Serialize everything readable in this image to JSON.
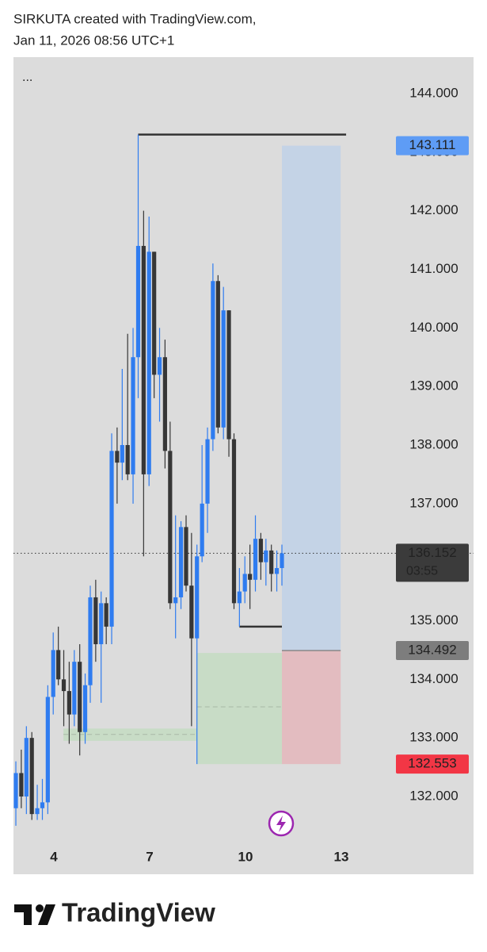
{
  "header": {
    "line1": "SIRKUTA created with TradingView.com,",
    "line2": "Jan 11, 2026 08:56 UTC+1"
  },
  "footer_logo": "TradingView",
  "chart_data": {
    "type": "candlestick",
    "menu": "...",
    "up_color": "#2f7cf0",
    "down_color": "#363636",
    "x": [
      2.81,
      2.98,
      3.14,
      3.31,
      3.48,
      3.64,
      3.81,
      3.98,
      4.14,
      4.31,
      4.48,
      4.64,
      4.81,
      4.98,
      5.14,
      5.31,
      5.48,
      5.64,
      5.81,
      5.98,
      6.14,
      6.31,
      6.48,
      6.64,
      6.81,
      6.98,
      7.14,
      7.31,
      7.48,
      7.64,
      7.81,
      7.98,
      8.14,
      8.31,
      8.48,
      8.64,
      8.81,
      8.98,
      9.14,
      9.31,
      9.48,
      9.64,
      9.81,
      9.98,
      10.14,
      10.31,
      10.48,
      10.64,
      10.81,
      10.98,
      11.14
    ],
    "open": [
      131.8,
      132.4,
      132.0,
      133.0,
      131.7,
      131.8,
      131.9,
      133.7,
      134.5,
      134.0,
      133.8,
      133.4,
      134.3,
      133.1,
      133.9,
      135.4,
      134.6,
      135.3,
      134.9,
      137.9,
      137.7,
      138.0,
      137.5,
      139.5,
      141.4,
      137.5,
      141.3,
      139.2,
      139.5,
      137.9,
      135.3,
      135.4,
      136.6,
      135.6,
      134.7,
      136.1,
      137.0,
      138.1,
      140.8,
      138.3,
      140.3,
      138.1,
      135.3,
      135.5,
      135.8,
      135.7,
      136.4,
      136.0,
      136.2,
      135.8,
      135.9
    ],
    "high": [
      132.6,
      132.8,
      133.2,
      133.1,
      132.2,
      132.3,
      133.9,
      134.8,
      134.9,
      134.5,
      134.3,
      134.5,
      134.6,
      134.1,
      135.6,
      135.7,
      135.5,
      135.4,
      138.2,
      138.3,
      139.3,
      139.9,
      140.0,
      143.3,
      142.0,
      141.9,
      141.3,
      140.0,
      139.8,
      138.4,
      136.8,
      136.7,
      136.8,
      136.5,
      136.3,
      138.0,
      138.3,
      141.1,
      140.9,
      140.7,
      140.3,
      138.2,
      135.9,
      136.1,
      136.3,
      136.8,
      136.5,
      136.4,
      136.3,
      136.2,
      136.3
    ],
    "low": [
      131.5,
      131.8,
      131.7,
      131.6,
      131.6,
      131.6,
      131.7,
      133.4,
      133.9,
      133.2,
      132.9,
      133.2,
      132.7,
      132.9,
      133.6,
      134.3,
      133.6,
      134.6,
      134.6,
      137.0,
      137.4,
      137.4,
      137.0,
      138.8,
      136.1,
      137.3,
      138.8,
      138.4,
      137.6,
      135.2,
      134.7,
      135.2,
      135.5,
      133.2,
      132.553,
      136.0,
      136.5,
      137.9,
      138.2,
      138.1,
      137.8,
      135.2,
      134.9,
      135.3,
      135.2,
      135.5,
      135.7,
      135.6,
      135.5,
      135.5,
      135.6
    ],
    "close": [
      132.4,
      132.0,
      133.0,
      131.7,
      131.8,
      131.9,
      133.7,
      134.5,
      134.0,
      133.8,
      133.4,
      134.3,
      133.1,
      133.9,
      135.4,
      134.6,
      135.3,
      134.9,
      137.9,
      137.7,
      138.0,
      137.5,
      139.5,
      141.4,
      137.5,
      141.3,
      139.2,
      139.5,
      137.9,
      135.3,
      135.4,
      136.6,
      135.6,
      134.7,
      136.1,
      137.0,
      138.1,
      140.8,
      138.3,
      140.3,
      138.1,
      135.3,
      135.5,
      135.8,
      135.7,
      136.4,
      136.0,
      136.2,
      135.8,
      135.9,
      136.152
    ],
    "xlim": [
      2.735,
      17.14
    ],
    "xticks": [
      4,
      7,
      10,
      13
    ],
    "ylim": [
      131.133,
      144.623
    ],
    "yticks": [
      {
        "value": 132,
        "label": "132.000"
      },
      {
        "value": 133,
        "label": "133.000"
      },
      {
        "value": 134,
        "label": "134.000"
      },
      {
        "value": 135,
        "label": "135.000"
      },
      {
        "value": 136,
        "label": "136.000"
      },
      {
        "value": 137,
        "label": "137.000"
      },
      {
        "value": 138,
        "label": "138.000"
      },
      {
        "value": 139,
        "label": "139.000"
      },
      {
        "value": 140,
        "label": "140.000"
      },
      {
        "value": 141,
        "label": "141.000"
      },
      {
        "value": 142,
        "label": "142.000"
      },
      {
        "value": 143,
        "label": "143.000"
      },
      {
        "value": 144,
        "label": "144.000"
      }
    ],
    "last_price": 136.152,
    "countdown": "03:55",
    "position": {
      "x0": 11.14,
      "x1": 12.98,
      "entry": 134.492,
      "target": 143.111,
      "stop": 132.553
    },
    "levels": [
      {
        "value": 143.3,
        "x0": 6.64,
        "x1": 13.15
      },
      {
        "value": 134.9,
        "x0": 9.81,
        "x1": 11.14
      }
    ],
    "zones": [
      {
        "x0": 8.48,
        "x1": 11.14,
        "y0": 132.553,
        "y1": 134.45,
        "mid": 133.53
      },
      {
        "x0": 4.3,
        "x1": 8.48,
        "y0": 132.95,
        "y1": 133.16,
        "mid": 133.06
      }
    ]
  }
}
